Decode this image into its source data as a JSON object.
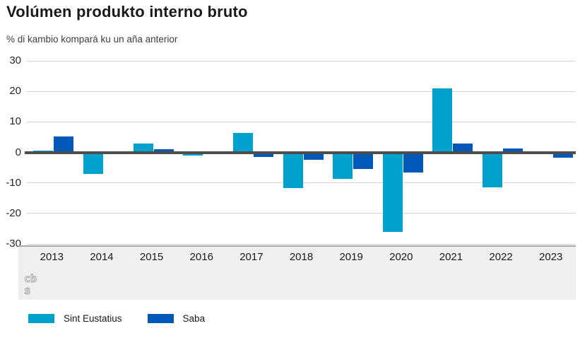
{
  "title": "Volúmen produkto interno bruto",
  "subtitle": "% di kambio kompará ku un aña anterior",
  "chart_data": {
    "type": "bar",
    "categories": [
      "2013",
      "2014",
      "2015",
      "2016",
      "2017",
      "2018",
      "2019",
      "2020",
      "2021",
      "2022",
      "2023"
    ],
    "series": [
      {
        "name": "Sint Eustatius",
        "color": "#00a1cd",
        "values": [
          0.6,
          -7.0,
          3.0,
          -1.1,
          6.4,
          -11.7,
          -8.7,
          -26.0,
          21.0,
          -11.4,
          -0.4
        ]
      },
      {
        "name": "Saba",
        "color": "#0058b8",
        "values": [
          5.3,
          0.0,
          1.0,
          -0.6,
          -1.6,
          -2.4,
          -5.5,
          -6.6,
          3.0,
          1.3,
          -1.7
        ]
      }
    ],
    "title": "Volúmen produkto interno bruto",
    "xlabel": "",
    "ylabel": "% di kambio kompará ku un aña anterior",
    "ylim": [
      -30,
      30
    ],
    "yticks": [
      30,
      20,
      10,
      0,
      -10,
      -20,
      -30
    ],
    "grid": true,
    "zero_line_color": "#4d4d4d",
    "legend_position": "bottom"
  },
  "legend": {
    "items": [
      {
        "label": "Sint Eustatius",
        "color": "#00a1cd"
      },
      {
        "label": "Saba",
        "color": "#0058b8"
      }
    ]
  },
  "footer": {
    "logo_name": "cbs-logo",
    "logo_color": "#a6a6a6"
  },
  "colors": {
    "band_background": "#efefef",
    "gridline": "#d2d2d2",
    "axis_line": "#a9a9a9",
    "text": "#1a1a1a"
  }
}
